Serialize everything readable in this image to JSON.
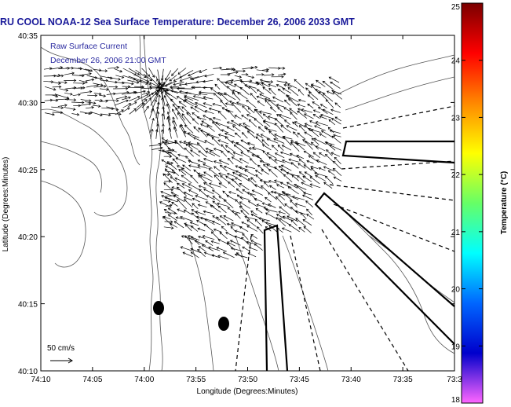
{
  "title": "RU COOL  NOAA-12  Sea Surface Temperature:  December 26, 2006 2033 GMT",
  "legend": {
    "line1": "Raw Surface Current",
    "line2": "December 26, 2006 21:00 GMT"
  },
  "scale_label": "50 cm/s",
  "x_axis": {
    "label": "Longitude (Degrees:Minutes)",
    "ticks": [
      "74:10",
      "74:05",
      "74:00",
      "73:55",
      "73:50",
      "73:45",
      "73:40",
      "73:35",
      "73:3"
    ]
  },
  "y_axis": {
    "label": "Latitude (Degrees:Minutes)",
    "ticks": [
      "40:35",
      "40:30",
      "40:25",
      "40:20",
      "40:15",
      "40:10"
    ]
  },
  "colorbar": {
    "label": "Temperature (°C)",
    "ticks": [
      "25",
      "24",
      "23",
      "22",
      "21",
      "20",
      "19",
      "18"
    ],
    "colors": [
      "#7a0000",
      "#ff0000",
      "#ff8800",
      "#ffff00",
      "#66ff66",
      "#00ffff",
      "#0066ff",
      "#0000cc",
      "#ff66ff"
    ]
  }
}
